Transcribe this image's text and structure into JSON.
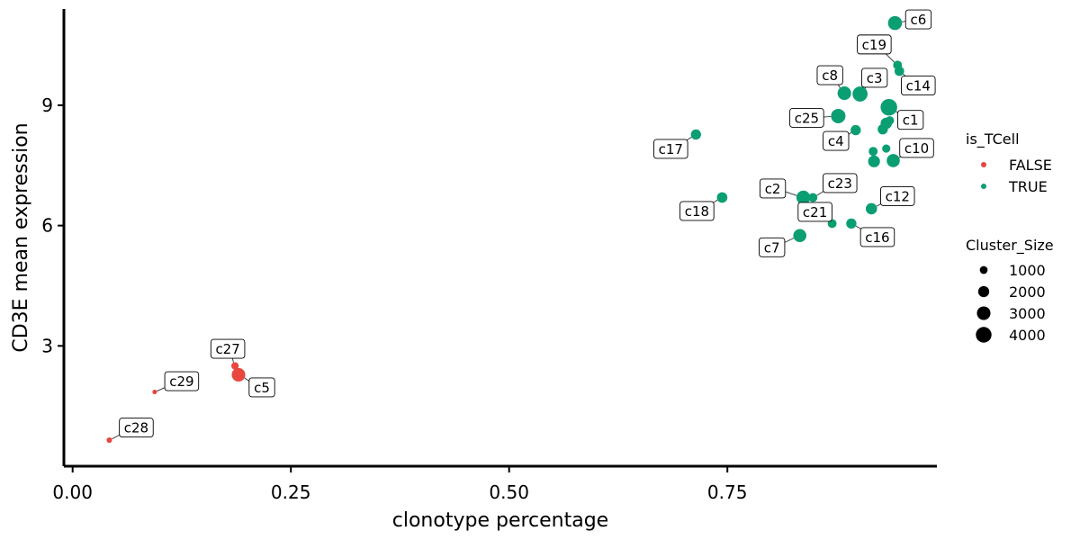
{
  "chart_data": {
    "type": "scatter",
    "title": "",
    "xlabel": "clonotype percentage",
    "ylabel": "CD3E mean expression",
    "xlim": [
      -0.01,
      0.99
    ],
    "ylim": [
      0.0,
      11.4
    ],
    "x_ticks": [
      {
        "value": 0.0,
        "label": "0.00"
      },
      {
        "value": 0.25,
        "label": "0.25"
      },
      {
        "value": 0.5,
        "label": "0.50"
      },
      {
        "value": 0.75,
        "label": "0.75"
      }
    ],
    "y_ticks": [
      {
        "value": 3,
        "label": "3"
      },
      {
        "value": 6,
        "label": "6"
      },
      {
        "value": 9,
        "label": "9"
      }
    ],
    "grid": false,
    "colors": {
      "FALSE": "#e8463f",
      "TRUE": "#0b9e73"
    },
    "points": [
      {
        "label": "c6",
        "x": 0.942,
        "y": 11.05,
        "size": 3200,
        "is_TCell": "TRUE"
      },
      {
        "label": "c19",
        "x": 0.945,
        "y": 10.0,
        "size": 1300,
        "is_TCell": "TRUE"
      },
      {
        "label": "c14",
        "x": 0.947,
        "y": 9.85,
        "size": 1500,
        "is_TCell": "TRUE"
      },
      {
        "label": "c8",
        "x": 0.884,
        "y": 9.3,
        "size": 3000,
        "is_TCell": "TRUE"
      },
      {
        "label": "c3",
        "x": 0.902,
        "y": 9.28,
        "size": 3700,
        "is_TCell": "TRUE"
      },
      {
        "label": "c1",
        "x": 0.935,
        "y": 8.95,
        "size": 4500,
        "is_TCell": "TRUE"
      },
      {
        "label": "c25",
        "x": 0.877,
        "y": 8.73,
        "size": 3400,
        "is_TCell": "TRUE"
      },
      {
        "label": "c4",
        "x": 0.897,
        "y": 8.38,
        "size": 1700,
        "is_TCell": "TRUE"
      },
      {
        "label": "c17",
        "x": 0.714,
        "y": 8.27,
        "size": 1700,
        "is_TCell": "TRUE"
      },
      {
        "label": "c10",
        "x": 0.94,
        "y": 7.62,
        "size": 2800,
        "is_TCell": "TRUE"
      },
      {
        "label": "c2",
        "x": 0.837,
        "y": 6.7,
        "size": 3100,
        "is_TCell": "TRUE"
      },
      {
        "label": "c23",
        "x": 0.848,
        "y": 6.7,
        "size": 1300,
        "is_TCell": "TRUE"
      },
      {
        "label": "c18",
        "x": 0.744,
        "y": 6.7,
        "size": 1800,
        "is_TCell": "TRUE"
      },
      {
        "label": "c12",
        "x": 0.915,
        "y": 6.42,
        "size": 2100,
        "is_TCell": "TRUE"
      },
      {
        "label": "c21",
        "x": 0.87,
        "y": 6.05,
        "size": 1300,
        "is_TCell": "TRUE"
      },
      {
        "label": "c16",
        "x": 0.892,
        "y": 6.05,
        "size": 1700,
        "is_TCell": "TRUE"
      },
      {
        "label": "c7",
        "x": 0.833,
        "y": 5.75,
        "size": 2800,
        "is_TCell": "TRUE"
      },
      {
        "label": "c27",
        "x": 0.186,
        "y": 2.5,
        "size": 900,
        "is_TCell": "FALSE"
      },
      {
        "label": "c5",
        "x": 0.19,
        "y": 2.28,
        "size": 3000,
        "is_TCell": "FALSE"
      },
      {
        "label": "c29",
        "x": 0.094,
        "y": 1.85,
        "size": 150,
        "is_TCell": "FALSE"
      },
      {
        "label": "c28",
        "x": 0.042,
        "y": 0.65,
        "size": 500,
        "is_TCell": "FALSE"
      },
      {
        "label": "",
        "x": 0.917,
        "y": 7.85,
        "size": 1300,
        "is_TCell": "TRUE"
      },
      {
        "label": "",
        "x": 0.932,
        "y": 7.92,
        "size": 1100,
        "is_TCell": "TRUE"
      },
      {
        "label": "",
        "x": 0.918,
        "y": 7.6,
        "size": 2300,
        "is_TCell": "TRUE"
      },
      {
        "label": "",
        "x": 0.932,
        "y": 8.55,
        "size": 2100,
        "is_TCell": "TRUE"
      },
      {
        "label": "",
        "x": 0.928,
        "y": 8.4,
        "size": 1700,
        "is_TCell": "TRUE"
      },
      {
        "label": "",
        "x": 0.936,
        "y": 8.62,
        "size": 1200,
        "is_TCell": "TRUE"
      }
    ],
    "legend": {
      "placement": "right",
      "color_title": "is_TCell",
      "color_items": [
        {
          "label": "FALSE",
          "key": "FALSE"
        },
        {
          "label": "TRUE",
          "key": "TRUE"
        }
      ],
      "size_title": "Cluster_Size",
      "size_items": [
        {
          "label": "1000",
          "value": 1000
        },
        {
          "label": "2000",
          "value": 2000
        },
        {
          "label": "3000",
          "value": 3000
        },
        {
          "label": "4000",
          "value": 4000
        }
      ]
    }
  }
}
